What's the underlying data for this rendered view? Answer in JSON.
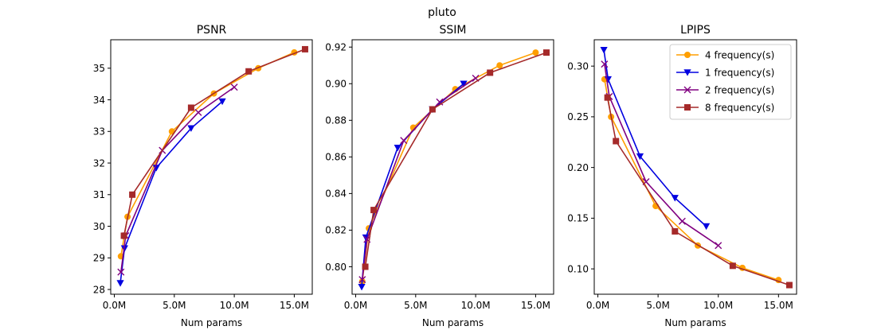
{
  "suptitle": "pluto",
  "xlabel": "Num params",
  "series_styles": [
    {
      "name": "4 frequency(s)",
      "color": "#ff9f00",
      "marker": "circle"
    },
    {
      "name": "1 frequency(s)",
      "color": "#0000e0",
      "marker": "triangle-down"
    },
    {
      "name": "2 frequency(s)",
      "color": "#800080",
      "marker": "x"
    },
    {
      "name": "8 frequency(s)",
      "color": "#a52a2a",
      "marker": "square"
    }
  ],
  "chart_data": [
    {
      "type": "line",
      "title": "PSNR",
      "xlabel": "Num params",
      "ylabel": "",
      "xlim": [
        -0.3,
        16.5
      ],
      "ylim": [
        27.85,
        35.9
      ],
      "xticks": [
        0,
        5,
        10,
        15
      ],
      "xticklabels": [
        "0.0M",
        "5.0M",
        "10.0M",
        "15.0M"
      ],
      "yticks": [
        28,
        29,
        30,
        31,
        32,
        33,
        34,
        35
      ],
      "yticklabels": [
        "28",
        "29",
        "30",
        "31",
        "32",
        "33",
        "34",
        "35"
      ],
      "legend": null,
      "series": [
        {
          "name": "4 frequency(s)",
          "x": [
            0.55,
            1.1,
            4.8,
            8.3,
            12.0,
            15.0
          ],
          "y": [
            29.05,
            30.3,
            33.0,
            34.2,
            35.0,
            35.5
          ]
        },
        {
          "name": "1 frequency(s)",
          "x": [
            0.5,
            0.85,
            3.5,
            6.4,
            9.0
          ],
          "y": [
            28.2,
            29.3,
            31.85,
            33.1,
            33.95
          ]
        },
        {
          "name": "2 frequency(s)",
          "x": [
            0.55,
            0.95,
            4.0,
            7.0,
            10.0
          ],
          "y": [
            28.55,
            29.7,
            32.4,
            33.6,
            34.4
          ]
        },
        {
          "name": "8 frequency(s)",
          "x": [
            0.8,
            1.5,
            6.4,
            11.2,
            15.9
          ],
          "y": [
            29.7,
            31.0,
            33.75,
            34.9,
            35.6
          ]
        }
      ]
    },
    {
      "type": "line",
      "title": "SSIM",
      "xlabel": "Num params",
      "ylabel": "",
      "xlim": [
        -0.3,
        16.5
      ],
      "ylim": [
        0.785,
        0.924
      ],
      "xticks": [
        0,
        5,
        10,
        15
      ],
      "xticklabels": [
        "0.0M",
        "5.0M",
        "10.0M",
        "15.0M"
      ],
      "yticks": [
        0.8,
        0.82,
        0.84,
        0.86,
        0.88,
        0.9,
        0.92
      ],
      "yticklabels": [
        "0.80",
        "0.82",
        "0.84",
        "0.86",
        "0.88",
        "0.90",
        "0.92"
      ],
      "legend": null,
      "series": [
        {
          "name": "4 frequency(s)",
          "x": [
            0.55,
            1.1,
            4.8,
            8.3,
            12.0,
            15.0
          ],
          "y": [
            0.792,
            0.821,
            0.876,
            0.897,
            0.91,
            0.917
          ]
        },
        {
          "name": "1 frequency(s)",
          "x": [
            0.5,
            0.85,
            3.5,
            6.4,
            9.0
          ],
          "y": [
            0.789,
            0.816,
            0.865,
            0.886,
            0.9
          ]
        },
        {
          "name": "2 frequency(s)",
          "x": [
            0.55,
            0.95,
            4.0,
            7.0,
            10.0
          ],
          "y": [
            0.793,
            0.815,
            0.869,
            0.89,
            0.903
          ]
        },
        {
          "name": "8 frequency(s)",
          "x": [
            0.8,
            1.5,
            6.4,
            11.2,
            15.9
          ],
          "y": [
            0.8,
            0.831,
            0.886,
            0.906,
            0.917
          ]
        }
      ]
    },
    {
      "type": "line",
      "title": "LPIPS",
      "xlabel": "Num params",
      "ylabel": "",
      "xlim": [
        -0.3,
        16.5
      ],
      "ylim": [
        0.075,
        0.326
      ],
      "xticks": [
        0,
        5,
        10,
        15
      ],
      "xticklabels": [
        "0.0M",
        "5.0M",
        "10.0M",
        "15.0M"
      ],
      "yticks": [
        0.1,
        0.15,
        0.2,
        0.25,
        0.3
      ],
      "yticklabels": [
        "0.10",
        "0.15",
        "0.20",
        "0.25",
        "0.30"
      ],
      "legend": "top-right",
      "series": [
        {
          "name": "4 frequency(s)",
          "x": [
            0.55,
            1.1,
            4.8,
            8.3,
            12.0,
            15.0
          ],
          "y": [
            0.287,
            0.25,
            0.162,
            0.123,
            0.101,
            0.089
          ]
        },
        {
          "name": "1 frequency(s)",
          "x": [
            0.5,
            0.85,
            3.5,
            6.4,
            9.0
          ],
          "y": [
            0.316,
            0.287,
            0.211,
            0.17,
            0.142
          ]
        },
        {
          "name": "2 frequency(s)",
          "x": [
            0.55,
            0.95,
            4.0,
            7.0,
            10.0
          ],
          "y": [
            0.302,
            0.27,
            0.186,
            0.147,
            0.123
          ]
        },
        {
          "name": "8 frequency(s)",
          "x": [
            0.8,
            1.5,
            6.4,
            11.2,
            15.9
          ],
          "y": [
            0.269,
            0.226,
            0.137,
            0.103,
            0.084
          ]
        }
      ]
    }
  ]
}
